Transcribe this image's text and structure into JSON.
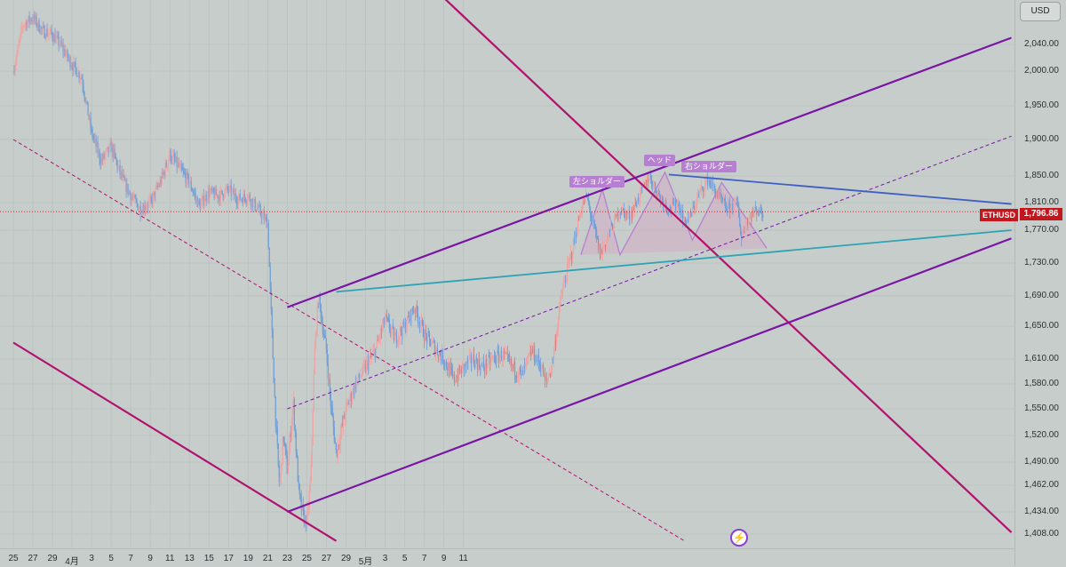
{
  "header": {
    "currency": "USD"
  },
  "symbol": {
    "name": "ETHUSD",
    "price_label": "1,796.86",
    "price": 1796.86,
    "color": "#c4161c"
  },
  "annotations": {
    "left_shoulder": "左ショルダー",
    "head": "ヘッド",
    "right_shoulder": "右ショルダー"
  },
  "colors": {
    "background": "#c6cdca",
    "up_candle": "#f0a3a3",
    "down_candle": "#6f9ed6",
    "channel_magenta": "#b0126d",
    "channel_purple": "#7a15a6",
    "neckline_teal": "#2ea3b5",
    "resistance_blue": "#3f5fc2",
    "pattern_fill": "#d5a6c4"
  },
  "logo_icon": "bolt-icon",
  "chart_data": {
    "type": "candlestick",
    "x_tick_labels": [
      "25",
      "27",
      "29",
      "4月",
      "3",
      "5",
      "7",
      "9",
      "11",
      "13",
      "15",
      "17",
      "19",
      "21",
      "23",
      "25",
      "27",
      "29",
      "5月",
      "3",
      "5",
      "7",
      "9",
      "11"
    ],
    "y_tick_labels": [
      "2,040.00",
      "2,000.00",
      "1,950.00",
      "1,900.00",
      "1,850.00",
      "1,810.00",
      "1,770.00",
      "1,730.00",
      "1,690.00",
      "1,650.00",
      "1,610.00",
      "1,580.00",
      "1,550.00",
      "1,520.00",
      "1,490.00",
      "1,462.00",
      "1,434.00",
      "1,408.00"
    ],
    "y_ticks": [
      2040,
      2000,
      1950,
      1900,
      1850,
      1810,
      1770,
      1730,
      1690,
      1650,
      1610,
      1580,
      1550,
      1520,
      1490,
      1462,
      1434,
      1408
    ],
    "price_path": [
      [
        0,
        2000
      ],
      [
        0.5,
        2070
      ],
      [
        1,
        2080
      ],
      [
        1.5,
        2060
      ],
      [
        2,
        2055
      ],
      [
        2.5,
        2035
      ],
      [
        3,
        2010
      ],
      [
        3.5,
        1990
      ],
      [
        4,
        1910
      ],
      [
        4.5,
        1870
      ],
      [
        5,
        1890
      ],
      [
        5.5,
        1850
      ],
      [
        6,
        1820
      ],
      [
        6.5,
        1800
      ],
      [
        7,
        1810
      ],
      [
        7.5,
        1840
      ],
      [
        8,
        1880
      ],
      [
        8.5,
        1860
      ],
      [
        9,
        1840
      ],
      [
        9.5,
        1805
      ],
      [
        10,
        1825
      ],
      [
        10.5,
        1820
      ],
      [
        11,
        1830
      ],
      [
        11.5,
        1815
      ],
      [
        12,
        1820
      ],
      [
        12.5,
        1800
      ],
      [
        13,
        1780
      ],
      [
        13.2,
        1650
      ],
      [
        13.4,
        1540
      ],
      [
        13.6,
        1460
      ],
      [
        13.8,
        1520
      ],
      [
        14,
        1480
      ],
      [
        14.3,
        1560
      ],
      [
        14.6,
        1450
      ],
      [
        14.8,
        1430
      ],
      [
        15,
        1420
      ],
      [
        15.2,
        1470
      ],
      [
        15.4,
        1620
      ],
      [
        15.6,
        1690
      ],
      [
        15.8,
        1650
      ],
      [
        16,
        1620
      ],
      [
        16.2,
        1560
      ],
      [
        16.5,
        1500
      ],
      [
        17,
        1550
      ],
      [
        17.5,
        1580
      ],
      [
        18,
        1600
      ],
      [
        18.5,
        1620
      ],
      [
        19,
        1660
      ],
      [
        19.5,
        1635
      ],
      [
        20,
        1650
      ],
      [
        20.5,
        1675
      ],
      [
        21,
        1640
      ],
      [
        21.5,
        1625
      ],
      [
        22,
        1610
      ],
      [
        22.5,
        1585
      ],
      [
        23,
        1600
      ],
      [
        23.5,
        1610
      ],
      [
        24,
        1600
      ],
      [
        24.5,
        1610
      ],
      [
        25,
        1615
      ],
      [
        25.5,
        1600
      ],
      [
        26,
        1590
      ],
      [
        26.5,
        1620
      ],
      [
        27,
        1600
      ],
      [
        27.2,
        1580
      ],
      [
        27.5,
        1600
      ],
      [
        27.8,
        1650
      ],
      [
        28,
        1690
      ],
      [
        28.3,
        1720
      ],
      [
        28.7,
        1760
      ],
      [
        29,
        1800
      ],
      [
        29.3,
        1820
      ],
      [
        29.6,
        1780
      ],
      [
        30,
        1740
      ],
      [
        30.5,
        1770
      ],
      [
        31,
        1800
      ],
      [
        31.5,
        1790
      ],
      [
        32,
        1820
      ],
      [
        32.5,
        1850
      ],
      [
        33,
        1820
      ],
      [
        33.5,
        1800
      ],
      [
        34,
        1810
      ],
      [
        34.3,
        1780
      ],
      [
        34.6,
        1790
      ],
      [
        35,
        1820
      ],
      [
        35.5,
        1845
      ],
      [
        36,
        1820
      ],
      [
        36.5,
        1800
      ],
      [
        37,
        1810
      ],
      [
        37.2,
        1760
      ],
      [
        37.5,
        1785
      ],
      [
        38,
        1800
      ],
      [
        38.3,
        1796
      ]
    ],
    "lines": [
      {
        "name": "magenta_channel_upper",
        "points": [
          [
            5,
            2580
          ],
          [
            51,
            1410
          ]
        ]
      },
      {
        "name": "magenta_channel_lower",
        "points": [
          [
            0,
            1630
          ],
          [
            16.5,
            1400
          ]
        ]
      },
      {
        "name": "magenta_channel_mid",
        "points": [
          [
            0,
            1900
          ],
          [
            34.3,
            1400
          ]
        ]
      },
      {
        "name": "purple_channel_upper",
        "points": [
          [
            14,
            1675
          ],
          [
            51,
            2050
          ]
        ]
      },
      {
        "name": "purple_channel_lower",
        "points": [
          [
            14,
            1434
          ],
          [
            51,
            1760
          ]
        ]
      },
      {
        "name": "purple_channel_mid",
        "points": [
          [
            14,
            1550
          ],
          [
            51,
            1905
          ]
        ]
      },
      {
        "name": "neckline",
        "points": [
          [
            16.5,
            1695
          ],
          [
            51,
            1770
          ]
        ]
      },
      {
        "name": "resistance",
        "points": [
          [
            33.5,
            1852
          ],
          [
            51,
            1808
          ]
        ]
      }
    ],
    "pattern": [
      [
        29,
        1740
      ],
      [
        30.1,
        1830
      ],
      [
        31,
        1740
      ],
      [
        33.3,
        1855
      ],
      [
        34.7,
        1758
      ],
      [
        36.2,
        1840
      ],
      [
        38.5,
        1748
      ]
    ],
    "index_range": [
      0,
      51
    ],
    "price_range": [
      1400,
      2070
    ]
  }
}
